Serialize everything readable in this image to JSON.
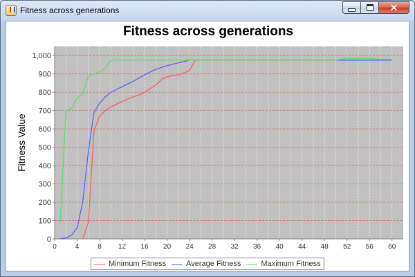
{
  "window": {
    "title": "Fitness across generations"
  },
  "controls": {
    "minimize": "minimize",
    "maximize": "maximize",
    "close": "close"
  },
  "colors": {
    "background_plot": "#c0c0c0",
    "grid_x": "#ffffff",
    "grid_y": "#e06060"
  },
  "chart_data": {
    "type": "line",
    "title": "Fitness across generations",
    "xlabel": "",
    "ylabel": "Fitness Value",
    "xlim": [
      0,
      62
    ],
    "ylim": [
      0,
      1050
    ],
    "x_ticks": [
      0,
      4,
      8,
      12,
      16,
      20,
      24,
      28,
      32,
      36,
      40,
      44,
      48,
      52,
      56,
      60
    ],
    "y_ticks": [
      0,
      100,
      200,
      300,
      400,
      500,
      600,
      700,
      800,
      900,
      1000
    ],
    "x_tick_labels": [
      "0",
      "4",
      "8",
      "12",
      "16",
      "20",
      "24",
      "28",
      "32",
      "36",
      "40",
      "44",
      "48",
      "52",
      "56",
      "60"
    ],
    "y_tick_labels": [
      "0",
      "100",
      "200",
      "300",
      "400",
      "500",
      "600",
      "700",
      "800",
      "900",
      "1,000"
    ],
    "grid": true,
    "legend_position": "bottom",
    "series": [
      {
        "name": "Minimum Fitness",
        "color": "#ff5a5a",
        "points": [
          [
            5,
            0
          ],
          [
            6,
            90
          ],
          [
            7,
            590
          ],
          [
            8,
            670
          ],
          [
            9,
            700
          ],
          [
            10,
            720
          ],
          [
            12,
            750
          ],
          [
            14,
            775
          ],
          [
            15,
            785
          ],
          [
            16,
            800
          ],
          [
            17,
            820
          ],
          [
            18,
            840
          ],
          [
            19,
            870
          ],
          [
            20,
            885
          ],
          [
            21,
            890
          ],
          [
            22,
            895
          ],
          [
            23,
            905
          ],
          [
            24,
            920
          ],
          [
            25,
            975
          ],
          [
            30,
            975
          ],
          [
            40,
            975
          ],
          [
            50,
            975
          ],
          [
            55,
            975
          ],
          [
            60,
            975
          ]
        ]
      },
      {
        "name": "Average Fitness",
        "color": "#5a5aff",
        "points": [
          [
            1,
            0
          ],
          [
            2,
            5
          ],
          [
            3,
            20
          ],
          [
            4,
            60
          ],
          [
            5,
            200
          ],
          [
            6,
            480
          ],
          [
            7,
            690
          ],
          [
            8,
            740
          ],
          [
            9,
            775
          ],
          [
            10,
            800
          ],
          [
            12,
            830
          ],
          [
            14,
            860
          ],
          [
            16,
            895
          ],
          [
            18,
            925
          ],
          [
            20,
            945
          ],
          [
            22,
            960
          ],
          [
            24,
            975
          ],
          [
            25,
            975
          ],
          [
            30,
            975
          ],
          [
            40,
            975
          ],
          [
            50,
            975
          ],
          [
            58,
            975
          ],
          [
            60,
            975
          ]
        ]
      },
      {
        "name": "Maximum Fitness",
        "color": "#5ae05a",
        "points": [
          [
            1,
            90
          ],
          [
            2,
            700
          ],
          [
            3,
            710
          ],
          [
            4,
            770
          ],
          [
            5,
            790
          ],
          [
            6,
            890
          ],
          [
            7,
            900
          ],
          [
            8,
            910
          ],
          [
            9,
            930
          ],
          [
            10,
            975
          ],
          [
            12,
            975
          ],
          [
            16,
            975
          ],
          [
            20,
            975
          ],
          [
            24,
            975
          ],
          [
            30,
            975
          ],
          [
            40,
            975
          ],
          [
            50,
            975
          ],
          [
            52,
            985
          ],
          [
            56,
            985
          ],
          [
            58,
            980
          ],
          [
            60,
            980
          ]
        ]
      }
    ]
  }
}
